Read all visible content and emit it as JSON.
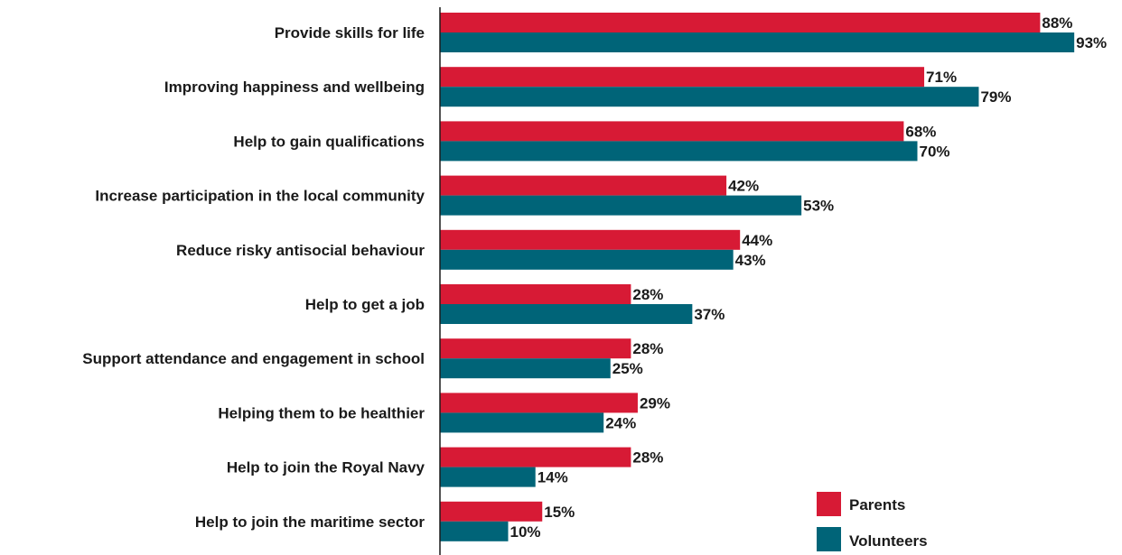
{
  "chart_data": {
    "type": "bar",
    "orientation": "horizontal",
    "categories": [
      "Provide skills for life",
      "Improving happiness and wellbeing",
      "Help to gain qualifications",
      "Increase participation in the local community",
      "Reduce risky antisocial behaviour",
      "Help to get a job",
      "Support attendance and engagement in school",
      "Helping them to be healthier",
      "Help to join the Royal Navy",
      "Help to join the maritime sector"
    ],
    "series": [
      {
        "name": "Parents",
        "color": "#d71a35",
        "values": [
          88,
          71,
          68,
          42,
          44,
          28,
          28,
          29,
          28,
          15
        ],
        "labels": [
          "88%",
          "71%",
          "68%",
          "42%",
          "44%",
          "28%",
          "28%",
          "29%",
          "28%",
          "15%"
        ]
      },
      {
        "name": "Volunteers",
        "color": "#006478",
        "values": [
          93,
          79,
          70,
          53,
          43,
          37,
          25,
          24,
          14,
          10
        ],
        "labels": [
          "93%",
          "79%",
          "70%",
          "53%",
          "43%",
          "37%",
          "25%",
          "24%",
          "14%",
          "10%"
        ]
      }
    ],
    "xlim": [
      0,
      100
    ],
    "value_unit": "%",
    "grid": false,
    "legend_position": "bottom-right",
    "title": "",
    "xlabel": "",
    "ylabel": ""
  }
}
